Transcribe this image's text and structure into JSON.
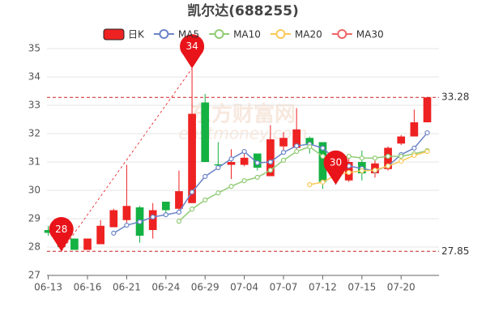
{
  "chart_data": {
    "type": "candlestick",
    "title": "凯尔达(688255)",
    "watermark": "东方财富网",
    "watermark_sub": "eastmoney.com",
    "categories": [
      "06-13",
      null,
      null,
      "06-16",
      null,
      null,
      "06-21",
      null,
      null,
      "06-24",
      null,
      null,
      "06-29",
      null,
      null,
      "07-04",
      null,
      null,
      "07-07",
      null,
      null,
      "07-12",
      null,
      null,
      "07-15",
      null,
      null,
      "07-20",
      null,
      null
    ],
    "series": [
      {
        "name": "日K",
        "up_color": "#ee2222",
        "down_color": "#14b143",
        "open": [
          28.6,
          28.5,
          28.3,
          27.9,
          28.1,
          28.7,
          28.95,
          29.4,
          28.6,
          29.6,
          29.35,
          29.55,
          33.1,
          30.92,
          30.9,
          30.9,
          31.3,
          30.5,
          31.55,
          31.5,
          31.85,
          31.7,
          30.6,
          30.35,
          31.0,
          30.6,
          30.75,
          31.65,
          31.9,
          32.4
        ],
        "close": [
          28.5,
          28.0,
          27.9,
          28.3,
          28.75,
          29.3,
          29.45,
          28.4,
          29.3,
          29.3,
          29.97,
          32.7,
          31.0,
          30.88,
          31.0,
          31.15,
          30.8,
          31.8,
          31.85,
          32.15,
          31.6,
          30.3,
          30.45,
          31.0,
          30.6,
          30.95,
          31.5,
          31.9,
          32.4,
          33.28
        ],
        "high": [
          28.75,
          28.6,
          28.3,
          28.3,
          28.95,
          29.35,
          30.9,
          29.45,
          29.55,
          29.6,
          30.7,
          34.3,
          33.4,
          31.7,
          31.45,
          31.35,
          31.3,
          32.3,
          32.05,
          32.9,
          31.9,
          31.7,
          30.9,
          31.2,
          31.4,
          31.05,
          31.55,
          31.95,
          32.85,
          33.3
        ],
        "low": [
          28.4,
          27.85,
          27.9,
          27.9,
          28.1,
          28.7,
          28.85,
          28.15,
          28.3,
          29.2,
          29.2,
          29.55,
          31.0,
          30.85,
          30.4,
          30.85,
          30.7,
          30.5,
          31.4,
          31.4,
          31.3,
          30.05,
          30.2,
          30.3,
          30.35,
          30.45,
          30.7,
          31.6,
          31.9,
          32.4
        ]
      },
      {
        "name": "MA5",
        "color": "#6c83c8",
        "values": [
          null,
          null,
          null,
          null,
          null,
          28.49,
          28.77,
          28.89,
          29.06,
          29.14,
          29.23,
          29.94,
          30.49,
          30.8,
          31.11,
          31.37,
          30.97,
          31.0,
          31.34,
          31.57,
          31.63,
          31.49,
          31.09,
          30.86,
          30.77,
          30.69,
          30.86,
          31.26,
          31.49,
          32.03
        ]
      },
      {
        "name": "MA10",
        "color": "#91cc75",
        "values": [
          null,
          null,
          null,
          null,
          null,
          null,
          null,
          null,
          null,
          null,
          28.91,
          29.34,
          29.66,
          29.91,
          30.14,
          30.34,
          30.46,
          30.71,
          31.06,
          31.37,
          31.54,
          31.2,
          31.17,
          31.2,
          31.14,
          31.14,
          31.2,
          31.2,
          31.29,
          31.4
        ]
      },
      {
        "name": "MA20",
        "color": "#fac858",
        "values": [
          null,
          null,
          null,
          null,
          null,
          null,
          null,
          null,
          null,
          null,
          null,
          null,
          null,
          null,
          null,
          null,
          null,
          null,
          null,
          null,
          30.2,
          30.29,
          30.54,
          30.63,
          30.69,
          30.71,
          30.86,
          31.03,
          31.23,
          31.37
        ]
      },
      {
        "name": "MA30",
        "color": "#ee6666",
        "values": [
          null,
          null,
          null,
          null,
          null,
          null,
          null,
          null,
          null,
          null,
          null,
          null,
          null,
          null,
          null,
          null,
          null,
          null,
          null,
          null,
          null,
          null,
          null,
          null,
          null,
          null,
          null,
          null,
          null,
          null
        ]
      }
    ],
    "ylim": [
      27,
      35
    ],
    "yticks": [
      27,
      28,
      29,
      30,
      31,
      32,
      33,
      34,
      35
    ],
    "grid": true,
    "mark_lines": [
      33.28,
      27.85
    ],
    "mark_line_color": "#cc2222",
    "annotations": [
      {
        "label": "28",
        "value": 27.85
      },
      {
        "label": "34",
        "value": 34.3
      },
      {
        "label": "30",
        "value": 30.2
      }
    ]
  }
}
